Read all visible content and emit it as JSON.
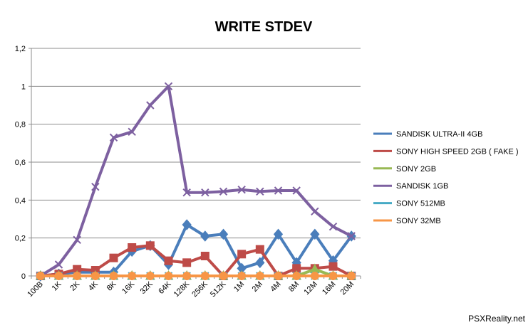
{
  "chart_data": {
    "type": "line",
    "title": "WRITE STDEV",
    "xlabel": "",
    "ylabel": "",
    "ylim": [
      0,
      1.2
    ],
    "y_ticks": [
      "0",
      "0,2",
      "0,4",
      "0,6",
      "0,8",
      "1",
      "1,2"
    ],
    "grid": "horizontal",
    "legend_position": "right",
    "categories": [
      "100B",
      "1K",
      "2K",
      "4K",
      "8K",
      "16K",
      "32K",
      "64K",
      "128K",
      "256K",
      "512K",
      "1M",
      "2M",
      "4M",
      "8M",
      "12M",
      "16M",
      "20M"
    ],
    "series": [
      {
        "name": "SANDISK ULTRA-II 4GB",
        "color": "#4a7ebb",
        "marker": "diamond",
        "values": [
          0.0,
          0.01,
          0.02,
          0.02,
          0.02,
          0.13,
          0.16,
          0.06,
          0.27,
          0.21,
          0.22,
          0.04,
          0.07,
          0.22,
          0.07,
          0.22,
          0.08,
          0.21
        ]
      },
      {
        "name": "SONY HIGH SPEED 2GB ( FAKE )",
        "color": "#be4b48",
        "marker": "square",
        "values": [
          0.0,
          0.01,
          0.035,
          0.03,
          0.095,
          0.15,
          0.16,
          0.08,
          0.07,
          0.105,
          0.0,
          0.115,
          0.14,
          0.0,
          0.04,
          0.04,
          0.05,
          0.0
        ]
      },
      {
        "name": "SONY 2GB",
        "color": "#98b954",
        "marker": "triangle",
        "values": [
          0.0,
          0.0,
          0.0,
          0.0,
          0.0,
          0.0,
          0.0,
          0.0,
          0.0,
          0.0,
          0.0,
          0.0,
          0.0,
          0.0,
          0.0,
          0.035,
          0.0,
          0.0
        ]
      },
      {
        "name": "SANDISK 1GB",
        "color": "#7d60a0",
        "marker": "x",
        "values": [
          0.0,
          0.06,
          0.19,
          0.47,
          0.73,
          0.76,
          0.9,
          1.0,
          0.44,
          0.44,
          0.445,
          0.455,
          0.445,
          0.45,
          0.45,
          0.34,
          0.26,
          0.21
        ]
      },
      {
        "name": "SONY 512MB",
        "color": "#46aac5",
        "marker": "star",
        "values": [
          0.0,
          0.0,
          0.0,
          0.0,
          0.0,
          0.0,
          0.0,
          0.0,
          0.0,
          0.0,
          0.0,
          0.0,
          0.0,
          0.0,
          0.0,
          0.0,
          0.0,
          0.0
        ]
      },
      {
        "name": "SONY 32MB",
        "color": "#f79646",
        "marker": "circle",
        "values": [
          0.0,
          0.0,
          0.0,
          0.0,
          0.0,
          0.0,
          0.0,
          0.0,
          0.0,
          0.0,
          0.0,
          0.0,
          0.0,
          0.0,
          0.0,
          0.0,
          0.0,
          0.0
        ]
      }
    ],
    "watermark": "PSXReality.net"
  }
}
